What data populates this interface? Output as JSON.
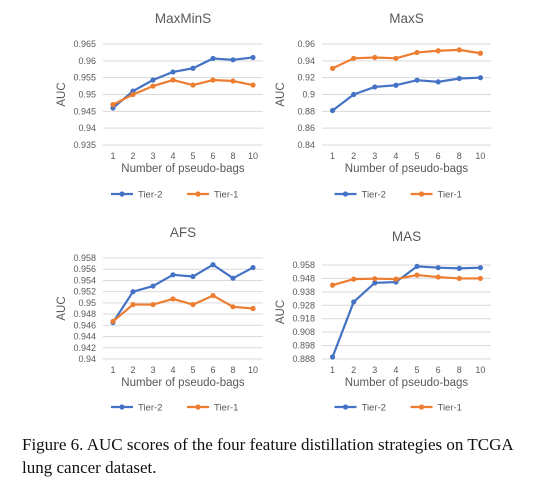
{
  "colors": {
    "tier2": "#4472C4",
    "tier1": "#ED7D31",
    "grid": "#D9D9D9",
    "text": "#595959"
  },
  "caption": "Figure 6.  AUC scores of the four feature distillation strategies on TCGA lung cancer dataset.",
  "chart_data": [
    {
      "type": "line",
      "title": "MaxMinS",
      "xlabel": "Number of pseudo-bags",
      "ylabel": "AUC",
      "categories": [
        "1",
        "2",
        "3",
        "4",
        "5",
        "6",
        "8",
        "10"
      ],
      "yticks": [
        "0.935",
        "0.94",
        "0.945",
        "0.95",
        "0.955",
        "0.96",
        "0.965"
      ],
      "ylim": [
        0.935,
        0.965
      ],
      "grid": true,
      "legend": "bottom",
      "series": [
        {
          "name": "Tier-2",
          "values": [
            0.946,
            0.951,
            0.9543,
            0.9567,
            0.9578,
            0.9607,
            0.9603,
            0.961
          ]
        },
        {
          "name": "Tier-1",
          "values": [
            0.947,
            0.95,
            0.9525,
            0.9543,
            0.9528,
            0.9543,
            0.954,
            0.9528
          ]
        }
      ]
    },
    {
      "type": "line",
      "title": "MaxS",
      "xlabel": "Number of pseudo-bags",
      "ylabel": "AUC",
      "categories": [
        "1",
        "2",
        "3",
        "4",
        "5",
        "6",
        "8",
        "10"
      ],
      "yticks": [
        "0.84",
        "0.86",
        "0.88",
        "0.9",
        "0.92",
        "0.94",
        "0.96"
      ],
      "ylim": [
        0.84,
        0.96
      ],
      "grid": true,
      "legend": "bottom",
      "series": [
        {
          "name": "Tier-2",
          "values": [
            0.881,
            0.9,
            0.909,
            0.911,
            0.917,
            0.915,
            0.919,
            0.92
          ]
        },
        {
          "name": "Tier-1",
          "values": [
            0.931,
            0.943,
            0.944,
            0.943,
            0.95,
            0.952,
            0.953,
            0.949
          ]
        }
      ]
    },
    {
      "type": "line",
      "title": "AFS",
      "xlabel": "Number of pseudo-bags",
      "ylabel": "AUC",
      "categories": [
        "1",
        "2",
        "3",
        "4",
        "5",
        "6",
        "8",
        "10"
      ],
      "yticks": [
        "0.94",
        "0.942",
        "0.944",
        "0.946",
        "0.948",
        "0.95",
        "0.952",
        "0.954",
        "0.956",
        "0.958"
      ],
      "ylim": [
        0.94,
        0.958
      ],
      "grid": true,
      "legend": "bottom",
      "series": [
        {
          "name": "Tier-2",
          "values": [
            0.9465,
            0.952,
            0.953,
            0.955,
            0.9547,
            0.9568,
            0.9544,
            0.9563
          ]
        },
        {
          "name": "Tier-1",
          "values": [
            0.9467,
            0.9497,
            0.9497,
            0.9507,
            0.9497,
            0.9513,
            0.9493,
            0.949
          ]
        }
      ]
    },
    {
      "type": "line",
      "title": "MAS",
      "xlabel": "Number of pseudo-bags",
      "ylabel": "AUC",
      "categories": [
        "1",
        "2",
        "3",
        "4",
        "5",
        "6",
        "8",
        "10"
      ],
      "yticks": [
        "0.888",
        "0.898",
        "0.908",
        "0.918",
        "0.928",
        "0.938",
        "0.948",
        "0.958"
      ],
      "ylim": [
        0.888,
        0.958
      ],
      "grid": true,
      "legend": "bottom",
      "series": [
        {
          "name": "Tier-2",
          "values": [
            0.8895,
            0.9305,
            0.9447,
            0.9453,
            0.957,
            0.956,
            0.9555,
            0.956
          ]
        },
        {
          "name": "Tier-1",
          "values": [
            0.943,
            0.9475,
            0.9478,
            0.9475,
            0.9505,
            0.949,
            0.948,
            0.948
          ]
        }
      ]
    }
  ]
}
